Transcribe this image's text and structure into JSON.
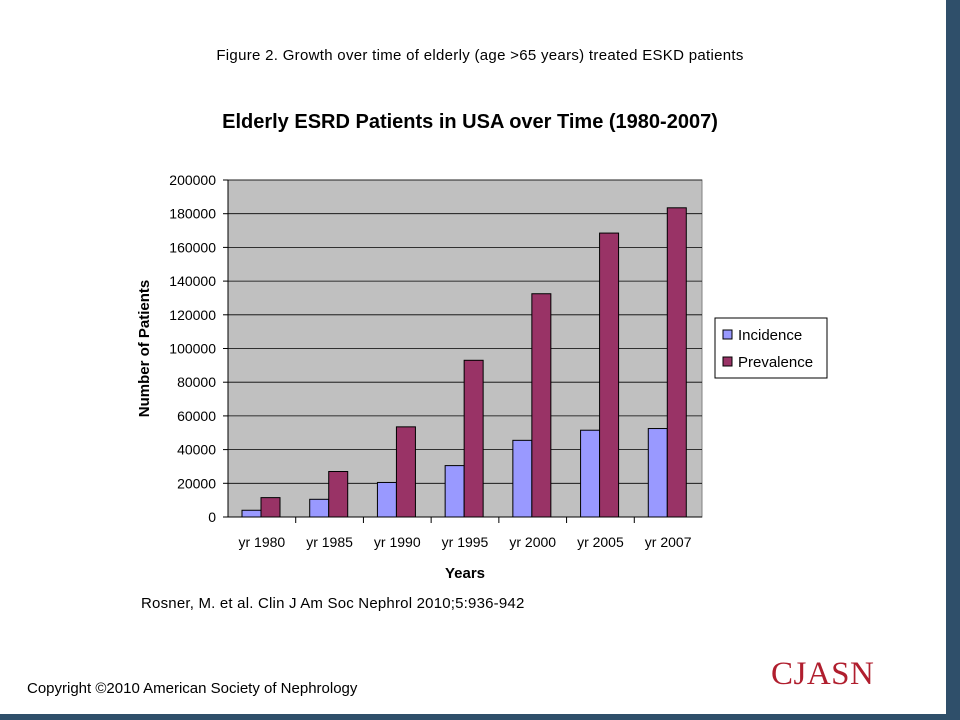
{
  "figure_caption": "Figure 2. Growth over time of elderly (age >65 years) treated ESKD patients",
  "citation": "Rosner, M. et al. Clin J Am Soc Nephrol 2010;5:936-942",
  "copyright": "Copyright ©2010 American Society of Nephrology",
  "journal_logo": "CJASN",
  "chart_data": {
    "type": "bar",
    "title": "Elderly ESRD Patients in USA over Time (1980-2007)",
    "xlabel": "Years",
    "ylabel": "Number of Patients",
    "categories": [
      "yr 1980",
      "yr 1985",
      "yr 1990",
      "yr 1995",
      "yr 2000",
      "yr 2005",
      "yr 2007"
    ],
    "ylim": [
      0,
      200000
    ],
    "yticks": [
      0,
      20000,
      40000,
      60000,
      80000,
      100000,
      120000,
      140000,
      160000,
      180000,
      200000
    ],
    "grid": true,
    "legend_position": "right",
    "series": [
      {
        "name": "Incidence",
        "color": "#9999ff",
        "values": [
          4000,
          10500,
          20500,
          30500,
          45500,
          51500,
          52500
        ]
      },
      {
        "name": "Prevalence",
        "color": "#993366",
        "values": [
          11500,
          27000,
          53500,
          93000,
          132500,
          168500,
          183500
        ]
      }
    ],
    "plot_background": "#c0c0c0"
  }
}
